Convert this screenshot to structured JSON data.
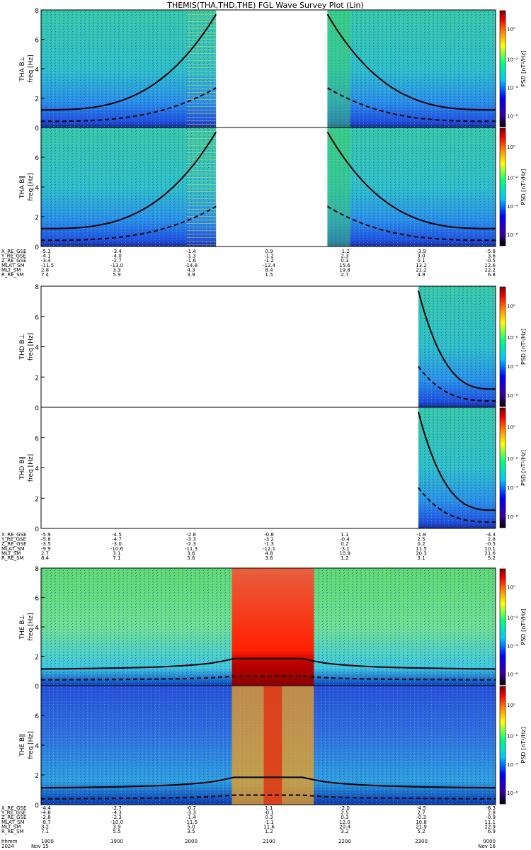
{
  "title": "THEMIS(THA,THD,THE) FGL Wave Survey Plot (Lin)",
  "chart_data": [
    {
      "type": "heatmap",
      "panel": "THA B⊥",
      "ylabel_probe": "THA B⊥",
      "ylabel_unit": "freq [Hz]",
      "ylim": [
        0,
        8
      ],
      "yticks": [
        0,
        2,
        4,
        6,
        8
      ],
      "colorbar_label": "PSD [nT²/Hz]",
      "colorbar_ticks": [
        "10⁰",
        "10⁻²",
        "10⁻⁴",
        "10⁻⁶"
      ],
      "data_coverage": [
        [
          0.0,
          0.385
        ],
        [
          0.63,
          1.0
        ]
      ],
      "gaps": [
        [
          0.385,
          0.63
        ]
      ]
    },
    {
      "type": "heatmap",
      "panel": "THA B∥",
      "ylabel_probe": "THA B∥",
      "ylabel_unit": "freq [Hz]",
      "ylim": [
        0,
        8
      ],
      "yticks": [
        0,
        2,
        4,
        6
      ],
      "colorbar_label": "PSD [nT²/Hz]",
      "colorbar_ticks": [
        "10⁰",
        "10⁻²",
        "10⁻⁴",
        "10⁻⁶"
      ],
      "data_coverage": [
        [
          0.0,
          0.385
        ],
        [
          0.63,
          1.0
        ]
      ],
      "gaps": [
        [
          0.385,
          0.63
        ]
      ]
    },
    {
      "type": "heatmap",
      "panel": "THD B⊥",
      "ylabel_probe": "THD B⊥",
      "ylabel_unit": "freq [Hz]",
      "ylim": [
        0,
        8
      ],
      "yticks": [
        0,
        2,
        4,
        6,
        8
      ],
      "colorbar_label": "PSD [nT²/Hz]",
      "colorbar_ticks": [
        "10⁰",
        "10⁻²",
        "10⁻⁴",
        "10⁻⁶"
      ],
      "data_coverage": [
        [
          0.83,
          1.0
        ]
      ],
      "gaps": [
        [
          0.0,
          0.83
        ]
      ]
    },
    {
      "type": "heatmap",
      "panel": "THD B∥",
      "ylabel_probe": "THD B∥",
      "ylabel_unit": "freq [Hz]",
      "ylim": [
        0,
        8
      ],
      "yticks": [
        0,
        2,
        4,
        6
      ],
      "colorbar_label": "PSD [nT²/Hz]",
      "colorbar_ticks": [
        "10⁰",
        "10⁻²",
        "10⁻⁴",
        "10⁻⁶"
      ],
      "data_coverage": [
        [
          0.83,
          1.0
        ]
      ],
      "gaps": [
        [
          0.0,
          0.83
        ]
      ]
    },
    {
      "type": "heatmap",
      "panel": "THE B⊥",
      "ylabel_probe": "THE B⊥",
      "ylabel_unit": "freq [Hz]",
      "ylim": [
        0,
        8
      ],
      "yticks": [
        0,
        2,
        4,
        6,
        8
      ],
      "colorbar_label": "PSD [nT²/Hz]",
      "colorbar_ticks": [
        "10⁰",
        "10⁻²",
        "10⁻⁴",
        "10⁻⁶"
      ],
      "data_coverage": [
        [
          0.0,
          1.0
        ]
      ],
      "gaps": []
    },
    {
      "type": "heatmap",
      "panel": "THE B∥",
      "ylabel_probe": "THE B∥",
      "ylabel_unit": "freq [Hz]",
      "ylim": [
        0,
        8
      ],
      "yticks": [
        0,
        2,
        4,
        6
      ],
      "colorbar_label": "PSD [nT²/Hz]",
      "colorbar_ticks": [
        "10⁰",
        "10⁻²",
        "10⁻⁴",
        "10⁻⁶"
      ],
      "data_coverage": [
        [
          0.0,
          1.0
        ]
      ],
      "gaps": []
    }
  ],
  "ephemeris_tables": [
    {
      "probe": "THA",
      "rows": [
        {
          "label": "X_RE_GSE",
          "values": [
            "-5.1",
            "-3.4",
            "-1.4",
            "0.9",
            "-1.2",
            "-3.9",
            "-5.8"
          ]
        },
        {
          "label": "Y_RE_GSE",
          "values": [
            "-4.1",
            "-4.0",
            "-1.3",
            "-1.2",
            "2.3",
            "3.0",
            "3.6"
          ]
        },
        {
          "label": "Z_RE_GSE",
          "values": [
            "-3.4",
            "-2.7",
            "-1.6",
            "-1.2",
            "0.3",
            "0.1",
            "-0.5"
          ]
        },
        {
          "label": "MLAT_SM",
          "values": [
            "-11.5",
            "-13.0",
            "-14.8",
            "-12.4",
            "15.6",
            "13.2",
            "12.6"
          ]
        },
        {
          "label": "MLT_SM",
          "values": [
            "2.8",
            "3.3",
            "4.3",
            "8.4",
            "19.8",
            "21.2",
            "22.2"
          ]
        },
        {
          "label": "R_RE_SM",
          "values": [
            "7.4",
            "5.9",
            "3.9",
            "1.5",
            "2.7",
            "4.9",
            "6.8"
          ]
        }
      ]
    },
    {
      "probe": "THD",
      "rows": [
        {
          "label": "X_RE_GSE",
          "values": [
            "-5.9",
            "-4.5",
            "-2.8",
            "-0.8",
            "1.1",
            "-1.8",
            "-4.3"
          ]
        },
        {
          "label": "Y_RE_GSE",
          "values": [
            "-5.8",
            "-4.7",
            "-3.3",
            "-3.2",
            "-0.4",
            "2.5",
            "2.8"
          ]
        },
        {
          "label": "Z_RE_GSE",
          "values": [
            "-3.5",
            "-3.0",
            "-2.3",
            "-1.3",
            "0.2",
            "0.2",
            "-0.5"
          ]
        },
        {
          "label": "MLAT_SM",
          "values": [
            "-9.9",
            "-10.6",
            "-11.3",
            "-12.1",
            "-3.1",
            "11.5",
            "10.1"
          ]
        },
        {
          "label": "MLT_SM",
          "values": [
            "2.7",
            "3.1",
            "3.6",
            "4.8",
            "10.9",
            "20.3",
            "21.6"
          ]
        },
        {
          "label": "R_RE_SM",
          "values": [
            "8.4",
            "7.1",
            "5.6",
            "3.6",
            "1.2",
            "3.1",
            "5.2"
          ]
        }
      ]
    },
    {
      "probe": "THE",
      "rows": [
        {
          "label": "X_RE_GSE",
          "values": [
            "-4.4",
            "-2.7",
            "-0.7",
            "1.1",
            "-2.0",
            "-4.5",
            "-6.3"
          ]
        },
        {
          "label": "Y_RE_GSE",
          "values": [
            "-4.8",
            "-4.3",
            "-3.3",
            "-0.1",
            "2.5",
            "2.7",
            "2.8"
          ]
        },
        {
          "label": "Z_RE_GSE",
          "values": [
            "-2.8",
            "-2.3",
            "-1.4",
            "0.3",
            "0.3",
            "-0.3",
            "-0.9"
          ]
        },
        {
          "label": "MLAT_SM",
          "values": [
            "-8.7",
            "-10.0",
            "-11.5",
            "-1.1",
            "12.0",
            "10.8",
            "11.1"
          ]
        },
        {
          "label": "MLT_SM",
          "values": [
            "3.2",
            "3.9",
            "5.0",
            "11.6",
            "20.4",
            "21.9",
            "22.9"
          ]
        },
        {
          "label": "R_RE_SM",
          "values": [
            "7.1",
            "5.5",
            "3.5",
            "1.2",
            "3.2",
            "5.2",
            "6.9"
          ]
        }
      ]
    }
  ],
  "time_axis": {
    "label": "hhmm",
    "year": "2024",
    "ticks": [
      "1800",
      "1900",
      "2000",
      "2100",
      "2200",
      "2300",
      "0000"
    ],
    "start_date": "Nov 15",
    "end_date": "Nov 16"
  },
  "colors": {
    "background": "#ffffff",
    "spectro_low": "#1a3fd0",
    "spectro_mid": "#2ec8b0",
    "spectro_high": "#d02010",
    "colorbar": [
      "#000000",
      "#3c00a0",
      "#0000ff",
      "#00c8ff",
      "#00ff80",
      "#ffff00",
      "#ff8000",
      "#ff0000",
      "#800000"
    ]
  }
}
